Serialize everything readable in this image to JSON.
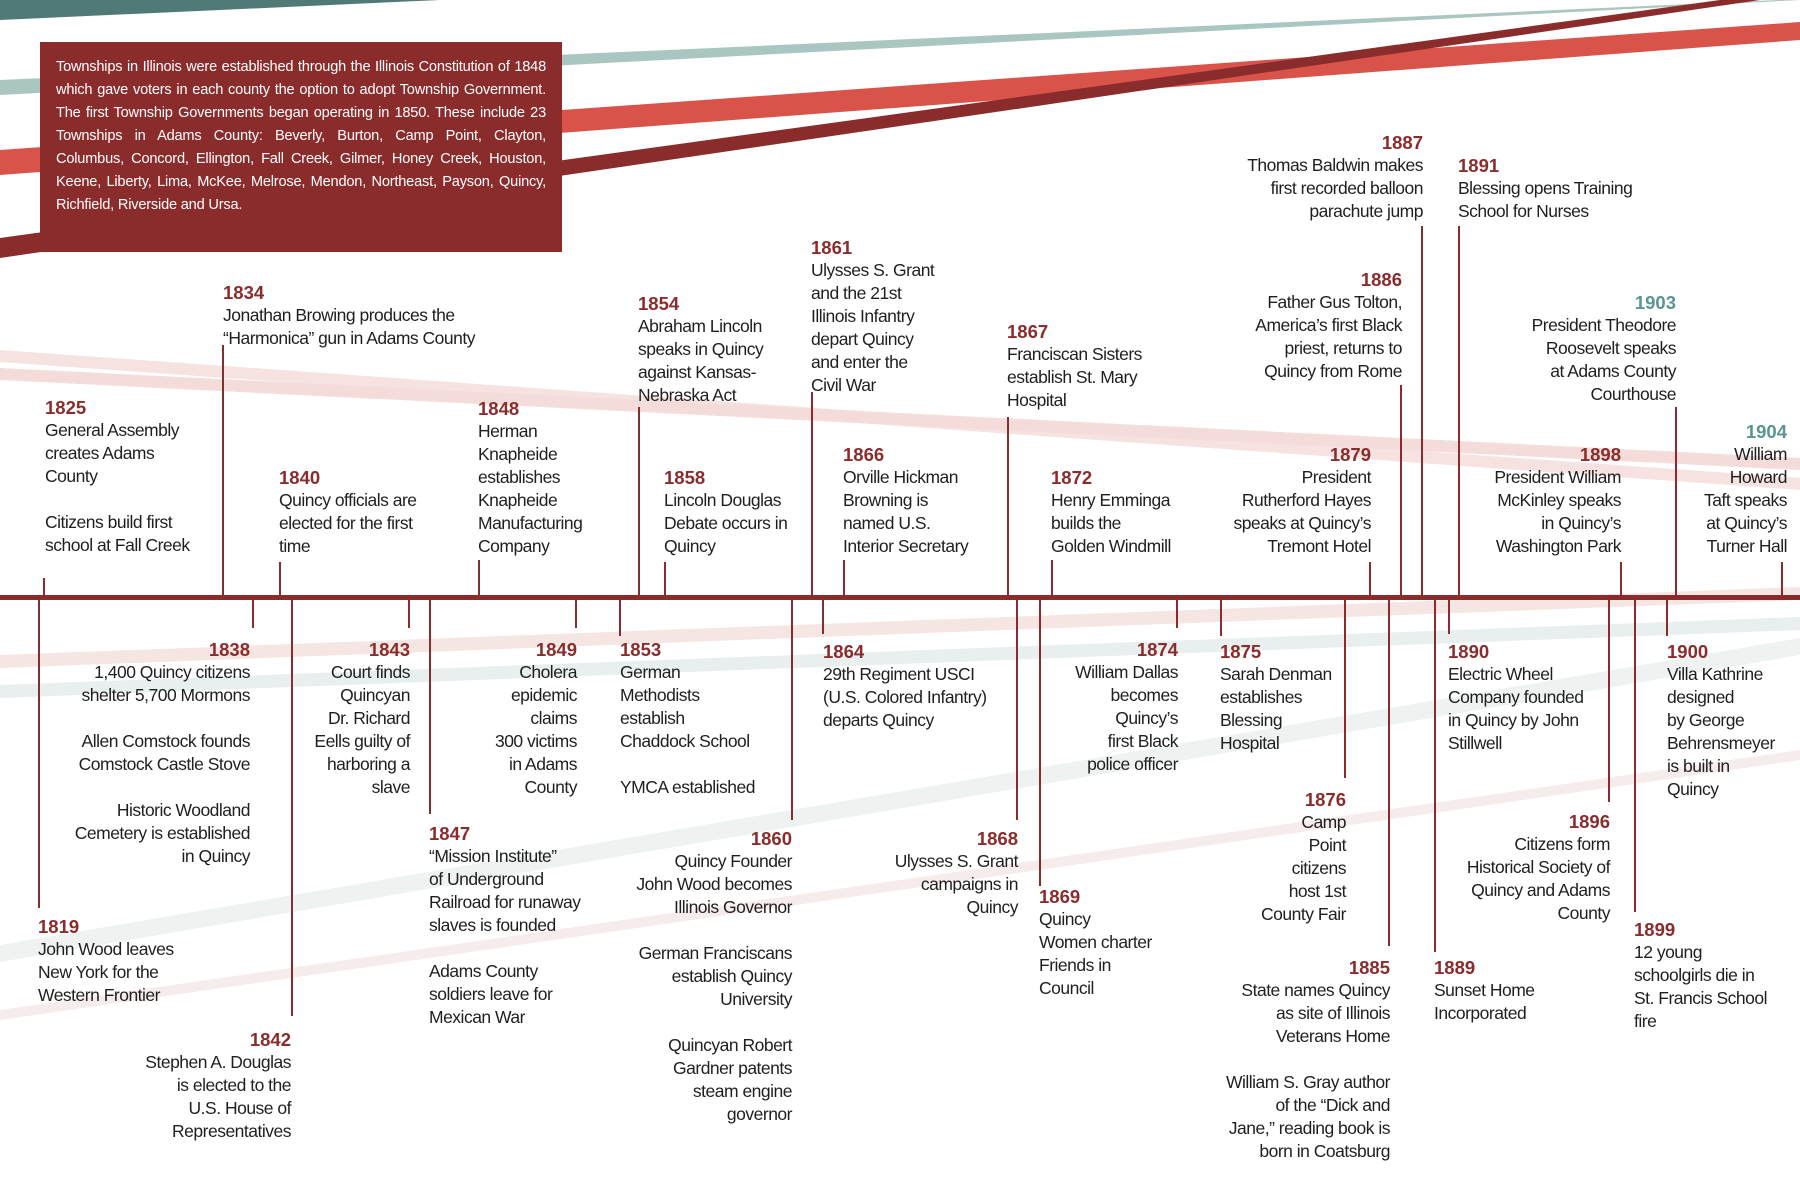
{
  "intro_text": "Townships in Illinois were established through the Illinois Constitution of 1848 which gave voters in each county the option to adopt Township Government. The first Township Governments began operating in 1850. These include 23 Townships in Adams County: Beverly, Burton, Camp Point, Clayton, Columbus, Concord, Ellington, Fall Creek, Gilmer, Honey Creek, Houston, Keene, Liberty, Lima, McKee, Melrose, Mendon, Northeast, Payson, Quincy, Richfield, Riverside and Ursa.",
  "colors": {
    "accent": "#8b2c2c",
    "teal": "#5b9590",
    "stripe_red": "#d9534a",
    "stripe_teal": "#a9c6c0"
  },
  "events_above": [
    {
      "year": "1825",
      "lines": [
        "General Assembly",
        "creates Adams",
        "County",
        "",
        "Citizens build first",
        "school at Fall Creek"
      ]
    },
    {
      "year": "1834",
      "lines": [
        "Jonathan Browing produces the",
        "“Harmonica” gun in Adams County"
      ]
    },
    {
      "year": "1840",
      "lines": [
        "Quincy officials are",
        "elected for the first",
        "time"
      ]
    },
    {
      "year": "1848",
      "lines": [
        "Herman",
        "Knapheide",
        "establishes",
        "Knapheide",
        "Manufacturing",
        "Company"
      ]
    },
    {
      "year": "1854",
      "lines": [
        "Abraham Lincoln",
        "speaks in Quincy",
        "against Kansas-",
        "Nebraska Act"
      ]
    },
    {
      "year": "1858",
      "lines": [
        "Lincoln Douglas",
        "Debate occurs in",
        "Quincy"
      ]
    },
    {
      "year": "1861",
      "lines": [
        "Ulysses S. Grant",
        "and the 21st",
        "Illinois Infantry",
        "depart Quincy",
        "and enter the",
        "Civil War"
      ]
    },
    {
      "year": "1866",
      "lines": [
        "Orville Hickman",
        "Browning is",
        "named U.S.",
        "Interior Secretary"
      ]
    },
    {
      "year": "1867",
      "lines": [
        "Franciscan Sisters",
        "establish St. Mary",
        "Hospital"
      ]
    },
    {
      "year": "1872",
      "lines": [
        "Henry Emminga",
        "builds the",
        "Golden Windmill"
      ]
    },
    {
      "year": "1879",
      "lines": [
        "President",
        "Rutherford Hayes",
        "speaks at Quincy’s",
        "Tremont Hotel"
      ]
    },
    {
      "year": "1886",
      "lines": [
        "Father Gus Tolton,",
        "America’s first Black",
        "priest, returns to",
        "Quincy from Rome"
      ]
    },
    {
      "year": "1887",
      "lines": [
        "Thomas Baldwin makes",
        "first recorded balloon",
        "parachute jump"
      ]
    },
    {
      "year": "1891",
      "lines": [
        "Blessing opens Training",
        "School for Nurses"
      ]
    },
    {
      "year": "1898",
      "lines": [
        "President William",
        "McKinley speaks",
        "in Quincy’s",
        "Washington Park"
      ]
    },
    {
      "year": "1903",
      "lines": [
        "President Theodore",
        "Roosevelt speaks",
        "at Adams County",
        "Courthouse"
      ]
    },
    {
      "year": "1904",
      "lines": [
        "William",
        "Howard",
        "Taft speaks",
        "at Quincy’s",
        "Turner Hall"
      ]
    }
  ],
  "events_below": [
    {
      "year": "1819",
      "lines": [
        "John Wood leaves",
        "New York for the",
        "Western Frontier"
      ]
    },
    {
      "year": "1838",
      "lines": [
        "1,400 Quincy citizens",
        "shelter 5,700 Mormons",
        "",
        "Allen Comstock founds",
        "Comstock Castle Stove",
        "",
        "Historic Woodland",
        "Cemetery is established",
        "in Quincy"
      ]
    },
    {
      "year": "1842",
      "lines": [
        "Stephen A. Douglas",
        "is elected to the",
        "U.S. House of",
        "Representatives"
      ]
    },
    {
      "year": "1843",
      "lines": [
        "Court finds",
        "Quincyan",
        "Dr. Richard",
        "Eells guilty of",
        "harboring a",
        "slave"
      ]
    },
    {
      "year": "1847",
      "lines": [
        "“Mission Institute”",
        "of Underground",
        "Railroad for runaway",
        "slaves is founded",
        "",
        "Adams County",
        "soldiers leave for",
        "Mexican War"
      ]
    },
    {
      "year": "1849",
      "lines": [
        "Cholera",
        "epidemic",
        "claims",
        "300 victims",
        "in Adams",
        "County"
      ]
    },
    {
      "year": "1853",
      "lines": [
        "German",
        "Methodists",
        "establish",
        "Chaddock School",
        "",
        "YMCA established"
      ]
    },
    {
      "year": "1860",
      "lines": [
        "Quincy Founder",
        "John Wood becomes",
        "Illinois Governor",
        "",
        "German Franciscans",
        "establish Quincy",
        "University",
        "",
        "Quincyan Robert",
        "Gardner patents",
        "steam engine",
        "governor"
      ]
    },
    {
      "year": "1864",
      "lines": [
        "29th Regiment USCI",
        "(U.S. Colored Infantry)",
        "departs Quincy"
      ]
    },
    {
      "year": "1868",
      "lines": [
        "Ulysses S. Grant",
        "campaigns in",
        "Quincy"
      ]
    },
    {
      "year": "1869",
      "lines": [
        "Quincy",
        "Women charter",
        "Friends in",
        "Council"
      ]
    },
    {
      "year": "1874",
      "lines": [
        "William Dallas",
        "becomes",
        "Quincy’s",
        "first Black",
        "police officer"
      ]
    },
    {
      "year": "1875",
      "lines": [
        "Sarah Denman",
        "establishes",
        "Blessing",
        "Hospital"
      ]
    },
    {
      "year": "1876",
      "lines": [
        "Camp",
        "Point",
        "citizens",
        "host 1st",
        "County Fair"
      ]
    },
    {
      "year": "1885",
      "lines": [
        "State names Quincy",
        "as site of Illinois",
        "Veterans Home",
        "",
        "William S. Gray author",
        "of the “Dick and",
        "Jane,” reading book is",
        "born in Coatsburg"
      ]
    },
    {
      "year": "1889",
      "lines": [
        "Sunset Home",
        "Incorporated"
      ]
    },
    {
      "year": "1890",
      "lines": [
        "Electric Wheel",
        "Company founded",
        "in Quincy by John",
        "Stillwell"
      ]
    },
    {
      "year": "1896",
      "lines": [
        "Citizens form",
        "Historical Society of",
        "Quincy and Adams",
        "County"
      ]
    },
    {
      "year": "1899",
      "lines": [
        "12 young",
        "schoolgirls die in",
        "St. Francis School",
        "fire"
      ]
    },
    {
      "year": "1900",
      "lines": [
        "Villa Kathrine",
        "designed",
        "by George",
        "Behrensmeyer",
        "is built in",
        "Quincy"
      ]
    }
  ]
}
